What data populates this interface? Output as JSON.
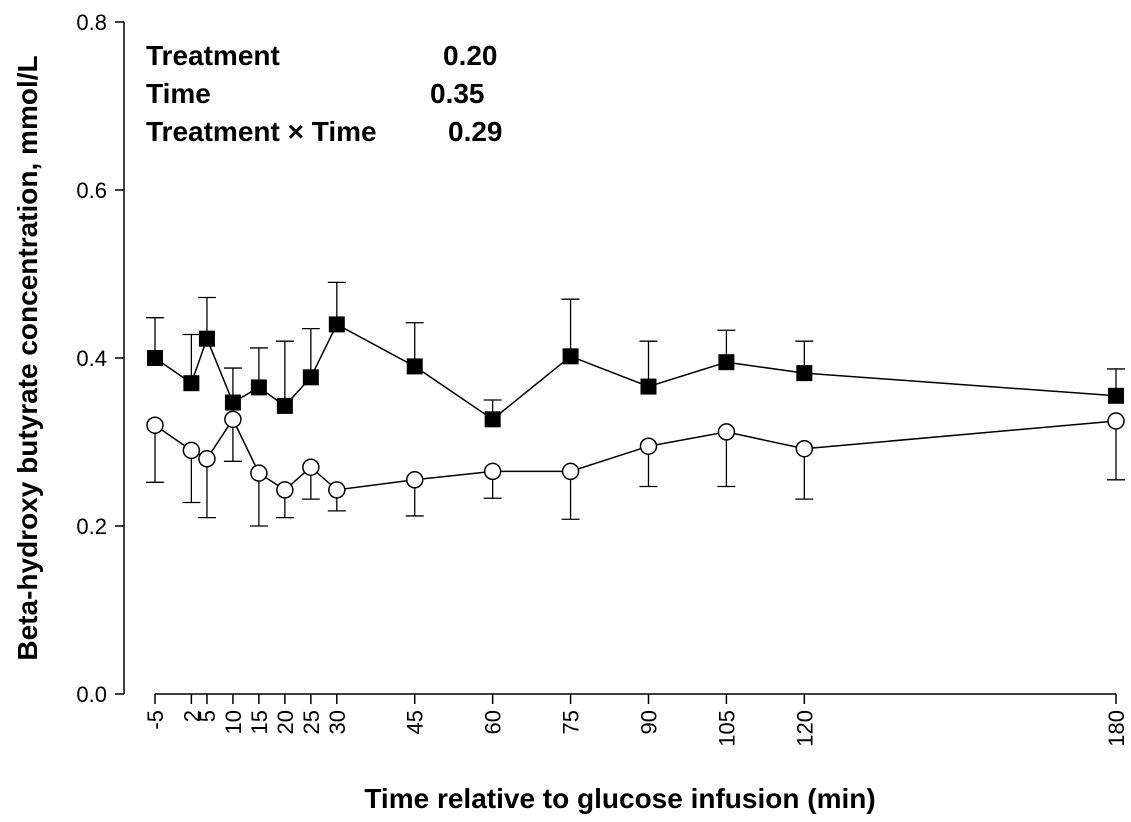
{
  "chart_data": {
    "type": "line",
    "xlabel": "Time relative to glucose infusion (min)",
    "ylabel": "Beta-hydroxy butyrate concentration, mmol/L",
    "xlim": [
      -5,
      180
    ],
    "ylim": [
      0.0,
      0.8
    ],
    "x_ticks": [
      -5,
      2,
      5,
      10,
      15,
      20,
      25,
      30,
      45,
      60,
      75,
      90,
      105,
      120,
      180
    ],
    "y_ticks": [
      0.0,
      0.2,
      0.4,
      0.6,
      0.8
    ],
    "y_tick_labels": [
      "0.0",
      "0.2",
      "0.4",
      "0.6",
      "0.8"
    ],
    "grid": false,
    "series": [
      {
        "marker": "filled-square",
        "color": "#000000",
        "x": [
          -5,
          2,
          5,
          10,
          15,
          20,
          25,
          30,
          45,
          60,
          75,
          90,
          105,
          120,
          180
        ],
        "y": [
          0.4,
          0.37,
          0.423,
          0.347,
          0.365,
          0.343,
          0.377,
          0.44,
          0.39,
          0.327,
          0.402,
          0.366,
          0.395,
          0.382,
          0.355
        ],
        "error_upper": [
          0.448,
          0.428,
          0.472,
          0.388,
          0.412,
          0.42,
          0.435,
          0.49,
          0.442,
          0.35,
          0.47,
          0.42,
          0.433,
          0.42,
          0.387
        ],
        "error_direction": "up"
      },
      {
        "marker": "open-circle",
        "color": "#000000",
        "x": [
          -5,
          2,
          5,
          10,
          15,
          20,
          25,
          30,
          45,
          60,
          75,
          90,
          105,
          120,
          180
        ],
        "y": [
          0.32,
          0.29,
          0.28,
          0.327,
          0.263,
          0.243,
          0.27,
          0.243,
          0.255,
          0.265,
          0.265,
          0.295,
          0.312,
          0.292,
          0.325
        ],
        "error_lower": [
          0.252,
          0.228,
          0.21,
          0.277,
          0.2,
          0.21,
          0.232,
          0.218,
          0.212,
          0.233,
          0.208,
          0.247,
          0.247,
          0.232,
          0.255
        ],
        "error_direction": "down"
      }
    ],
    "annotations": [
      {
        "label": "Treatment",
        "value": "0.20"
      },
      {
        "label": "Time",
        "value": "0.35"
      },
      {
        "label": "Treatment × Time",
        "value": "0.29"
      }
    ]
  }
}
